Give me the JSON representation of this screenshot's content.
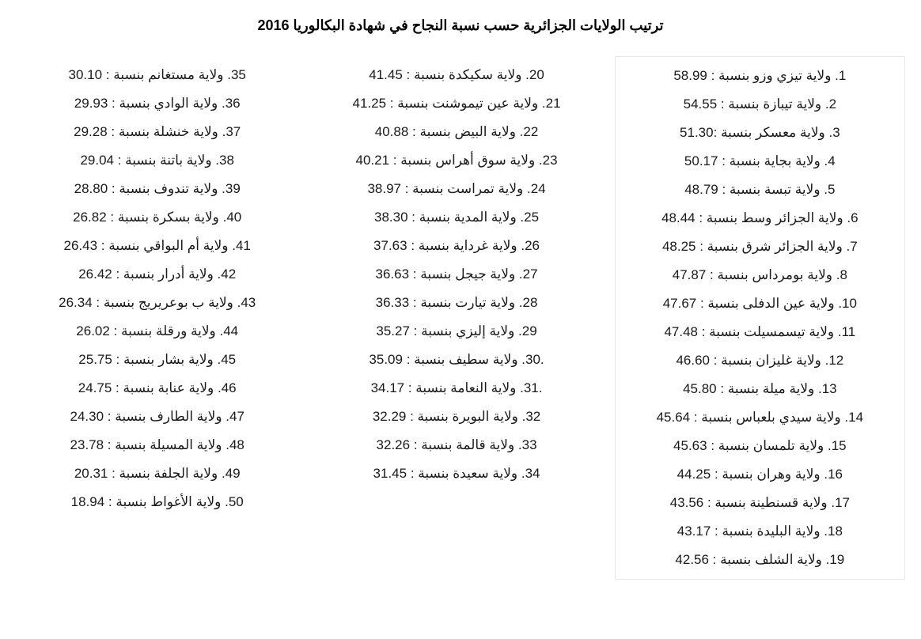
{
  "title": "ترتيب الولايات الجزائرية حسب نسبة النجاح في شهادة البكالوريا 2016",
  "columns": [
    {
      "rows": [
        {
          "rank": "1",
          "name": "ولاية تيزي وزو",
          "pct": "58.99"
        },
        {
          "rank": "2",
          "name": "ولاية تيبازة",
          "pct": "54.55"
        },
        {
          "rank": "3",
          "name": "ولاية معسكر",
          "pct": "51.30",
          "sep_after_name": true
        },
        {
          "rank": "4",
          "name": "ولاية بجاية",
          "pct": "50.17"
        },
        {
          "rank": "5",
          "name": "ولاية تبسة",
          "pct": "48.79"
        },
        {
          "rank": "6",
          "name": "ولاية الجزائر وسط",
          "pct": "48.44"
        },
        {
          "rank": "7",
          "name": "ولاية الجزائر شرق",
          "pct": "48.25"
        },
        {
          "rank": "8",
          "name": "ولاية بومرداس",
          "pct": "47.87"
        },
        {
          "rank": "10",
          "name": "ولاية عين الدفلى",
          "pct": "47.67"
        },
        {
          "rank": "11",
          "name": "ولاية تيسمسيلت",
          "pct": "47.48"
        },
        {
          "rank": "12",
          "name": "ولاية غليزان",
          "pct": "46.60"
        },
        {
          "rank": "13",
          "name": "ولاية ميلة",
          "pct": "45.80"
        },
        {
          "rank": "14",
          "name": "ولاية سيدي بلعباس",
          "pct": "45.64"
        },
        {
          "rank": "15",
          "name": "ولاية تلمسان",
          "pct": "45.63"
        },
        {
          "rank": "16",
          "name": "ولاية وهران",
          "pct": "44.25"
        },
        {
          "rank": "17",
          "name": "ولاية قسنطينة",
          "pct": "43.56"
        },
        {
          "rank": "18",
          "name": "ولاية البليدة",
          "pct": "43.17"
        },
        {
          "rank": "19",
          "name": "ولاية الشلف",
          "pct": "42.56"
        }
      ]
    },
    {
      "rows": [
        {
          "rank": "20",
          "name": "ولاية سكيكدة",
          "pct": "41.45"
        },
        {
          "rank": "21",
          "name": "ولاية عين تيموشنت",
          "pct": "41.25"
        },
        {
          "rank": "22",
          "name": "ولاية البيض",
          "pct": "40.88"
        },
        {
          "rank": "23",
          "name": "ولاية سوق أهراس",
          "pct": "40.21"
        },
        {
          "rank": "24",
          "name": "ولاية تمراست",
          "pct": "38.97"
        },
        {
          "rank": "25",
          "name": "ولاية المدية",
          "pct": "38.30"
        },
        {
          "rank": "26",
          "name": "ولاية غرداية",
          "pct": "37.63"
        },
        {
          "rank": "27",
          "name": "ولاية جيجل",
          "pct": "36.63"
        },
        {
          "rank": "28",
          "name": "ولاية تيارت",
          "pct": "36.33"
        },
        {
          "rank": "29",
          "name": "ولاية إليزي",
          "pct": "35.27"
        },
        {
          "rank": "30",
          "name": "ولاية سطيف",
          "pct": "35.09",
          "dot_before": true
        },
        {
          "rank": "31",
          "name": "ولاية النعامة",
          "pct": "34.17",
          "dot_before": true
        },
        {
          "rank": "32",
          "name": "ولاية البويرة",
          "pct": "32.29"
        },
        {
          "rank": "33",
          "name": "ولاية قالمة",
          "pct": "32.26"
        },
        {
          "rank": "34",
          "name": "ولاية سعيدة",
          "pct": "31.45"
        }
      ]
    },
    {
      "rows": [
        {
          "rank": "35",
          "name": "ولاية مستغانم",
          "pct": "30.10"
        },
        {
          "rank": "36",
          "name": "ولاية الوادي",
          "pct": "29.93"
        },
        {
          "rank": "37",
          "name": "ولاية خنشلة",
          "pct": "29.28"
        },
        {
          "rank": "38",
          "name": "ولاية باتنة",
          "pct": "29.04"
        },
        {
          "rank": "39",
          "name": "ولاية تندوف",
          "pct": "28.80"
        },
        {
          "rank": "40",
          "name": "ولاية بسكرة",
          "pct": "26.82"
        },
        {
          "rank": "41",
          "name": "ولاية أم البواقي",
          "pct": "26.43"
        },
        {
          "rank": "42",
          "name": "ولاية أدرار",
          "pct": "26.42"
        },
        {
          "rank": "43",
          "name": "ولاية ب بوعريريج",
          "pct": "26.34"
        },
        {
          "rank": "44",
          "name": "ولاية ورقلة",
          "pct": "26.02"
        },
        {
          "rank": "45",
          "name": "ولاية بشار",
          "pct": "25.75"
        },
        {
          "rank": "46",
          "name": "ولاية عنابة",
          "pct": "24.75"
        },
        {
          "rank": "47",
          "name": "ولاية الطارف",
          "pct": "24.30"
        },
        {
          "rank": "48",
          "name": "ولاية المسيلة",
          "pct": "23.78"
        },
        {
          "rank": "49",
          "name": "ولاية الجلفة",
          "pct": "20.31"
        },
        {
          "rank": "50",
          "name": "ولاية الأغواط",
          "pct": "18.94"
        }
      ]
    }
  ],
  "style": {
    "background_color": "#ffffff",
    "text_color": "#1a1a1a",
    "title_color": "#000000",
    "border_color": "#e8e8e8",
    "title_fontsize": 18,
    "row_fontsize": 17,
    "row_lineheight": 36
  }
}
